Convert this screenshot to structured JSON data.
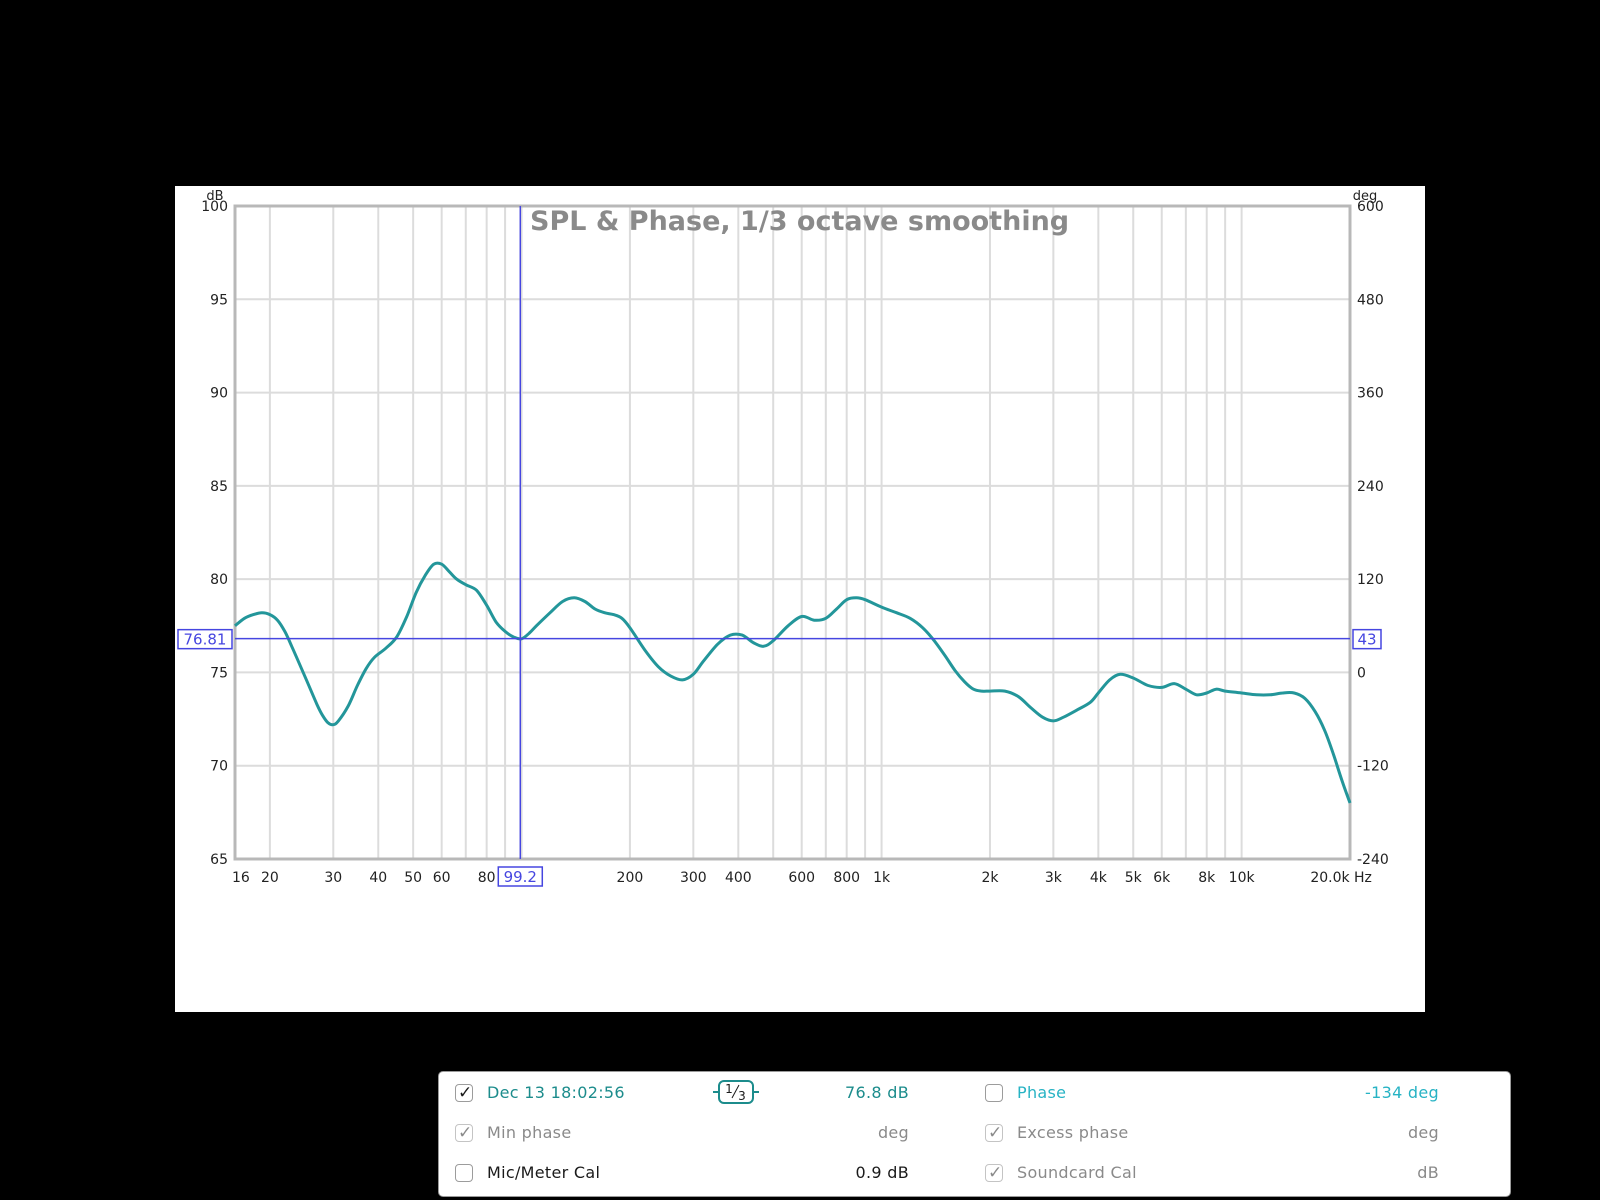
{
  "chart_data": {
    "type": "line",
    "title": "SPL & Phase, 1/3 octave smoothing",
    "x_scale": "log",
    "x_unit": "Hz",
    "xlim": [
      16,
      20000
    ],
    "left_axis_unit": "dB",
    "right_axis_unit": "deg",
    "ylim_left": [
      65,
      100
    ],
    "ylim_right": [
      -240,
      600
    ],
    "x_ticks": [
      {
        "value": 16,
        "label": "16"
      },
      {
        "value": 20,
        "label": "20"
      },
      {
        "value": 30,
        "label": "30"
      },
      {
        "value": 40,
        "label": "40"
      },
      {
        "value": 50,
        "label": "50"
      },
      {
        "value": 60,
        "label": "60"
      },
      {
        "value": 80,
        "label": "80"
      },
      {
        "value": 200,
        "label": "200"
      },
      {
        "value": 300,
        "label": "300"
      },
      {
        "value": 400,
        "label": "400"
      },
      {
        "value": 600,
        "label": "600"
      },
      {
        "value": 800,
        "label": "800"
      },
      {
        "value": 1000,
        "label": "1k"
      },
      {
        "value": 2000,
        "label": "2k"
      },
      {
        "value": 3000,
        "label": "3k"
      },
      {
        "value": 4000,
        "label": "4k"
      },
      {
        "value": 5000,
        "label": "5k"
      },
      {
        "value": 6000,
        "label": "6k"
      },
      {
        "value": 8000,
        "label": "8k"
      },
      {
        "value": 10000,
        "label": "10k"
      },
      {
        "value": 20000,
        "label": "20.0k"
      }
    ],
    "x_gridlines": [
      16,
      20,
      30,
      40,
      50,
      60,
      70,
      80,
      90,
      100,
      200,
      300,
      400,
      500,
      600,
      700,
      800,
      900,
      1000,
      2000,
      3000,
      4000,
      5000,
      6000,
      7000,
      8000,
      9000,
      10000,
      20000
    ],
    "x_end_label": "Hz",
    "y_left_ticks": [
      {
        "value": 100,
        "label": "100"
      },
      {
        "value": 95,
        "label": "95"
      },
      {
        "value": 90,
        "label": "90"
      },
      {
        "value": 85,
        "label": "85"
      },
      {
        "value": 80,
        "label": "80"
      },
      {
        "value": 75,
        "label": "75"
      },
      {
        "value": 70,
        "label": "70"
      },
      {
        "value": 65,
        "label": "65"
      }
    ],
    "y_right_ticks": [
      {
        "value": 600,
        "label": "600"
      },
      {
        "value": 480,
        "label": "480"
      },
      {
        "value": 360,
        "label": "360"
      },
      {
        "value": 240,
        "label": "240"
      },
      {
        "value": 120,
        "label": "120"
      },
      {
        "value": 0,
        "label": "0"
      },
      {
        "value": -120,
        "label": "-120"
      },
      {
        "value": -240,
        "label": "-240"
      }
    ],
    "cursor": {
      "x": 99.2,
      "x_label": "99.2",
      "y": 76.81,
      "y_label": "76.81",
      "right_label": "43"
    },
    "series": [
      {
        "name": "Dec 13 18:02:56",
        "color": "#23969a",
        "points": [
          [
            16,
            77.5
          ],
          [
            17,
            77.9
          ],
          [
            18,
            78.1
          ],
          [
            19,
            78.2
          ],
          [
            20,
            78.1
          ],
          [
            21,
            77.8
          ],
          [
            22,
            77.2
          ],
          [
            23,
            76.4
          ],
          [
            25,
            74.8
          ],
          [
            27,
            73.3
          ],
          [
            28,
            72.7
          ],
          [
            29,
            72.3
          ],
          [
            30,
            72.2
          ],
          [
            31,
            72.4
          ],
          [
            33,
            73.2
          ],
          [
            35,
            74.3
          ],
          [
            37,
            75.2
          ],
          [
            39,
            75.8
          ],
          [
            42,
            76.3
          ],
          [
            45,
            76.9
          ],
          [
            48,
            78.0
          ],
          [
            51,
            79.3
          ],
          [
            54,
            80.2
          ],
          [
            57,
            80.8
          ],
          [
            60,
            80.8
          ],
          [
            63,
            80.4
          ],
          [
            66,
            80.0
          ],
          [
            70,
            79.7
          ],
          [
            75,
            79.4
          ],
          [
            80,
            78.6
          ],
          [
            85,
            77.7
          ],
          [
            90,
            77.2
          ],
          [
            95,
            76.9
          ],
          [
            100,
            76.8
          ],
          [
            105,
            77.1
          ],
          [
            110,
            77.5
          ],
          [
            120,
            78.2
          ],
          [
            130,
            78.8
          ],
          [
            140,
            79.0
          ],
          [
            150,
            78.8
          ],
          [
            160,
            78.4
          ],
          [
            170,
            78.2
          ],
          [
            180,
            78.1
          ],
          [
            190,
            77.9
          ],
          [
            200,
            77.4
          ],
          [
            220,
            76.2
          ],
          [
            240,
            75.3
          ],
          [
            260,
            74.8
          ],
          [
            280,
            74.6
          ],
          [
            300,
            74.9
          ],
          [
            320,
            75.6
          ],
          [
            350,
            76.5
          ],
          [
            380,
            77.0
          ],
          [
            410,
            77.0
          ],
          [
            440,
            76.6
          ],
          [
            470,
            76.4
          ],
          [
            500,
            76.7
          ],
          [
            550,
            77.5
          ],
          [
            600,
            78.0
          ],
          [
            650,
            77.8
          ],
          [
            700,
            77.9
          ],
          [
            750,
            78.4
          ],
          [
            800,
            78.9
          ],
          [
            850,
            79.0
          ],
          [
            900,
            78.9
          ],
          [
            1000,
            78.5
          ],
          [
            1100,
            78.2
          ],
          [
            1200,
            77.9
          ],
          [
            1300,
            77.4
          ],
          [
            1400,
            76.7
          ],
          [
            1500,
            75.9
          ],
          [
            1600,
            75.1
          ],
          [
            1700,
            74.5
          ],
          [
            1800,
            74.1
          ],
          [
            1900,
            74.0
          ],
          [
            2000,
            74.0
          ],
          [
            2200,
            74.0
          ],
          [
            2400,
            73.7
          ],
          [
            2600,
            73.1
          ],
          [
            2800,
            72.6
          ],
          [
            3000,
            72.4
          ],
          [
            3200,
            72.6
          ],
          [
            3500,
            73.0
          ],
          [
            3800,
            73.4
          ],
          [
            4000,
            73.9
          ],
          [
            4300,
            74.6
          ],
          [
            4600,
            74.9
          ],
          [
            5000,
            74.7
          ],
          [
            5500,
            74.3
          ],
          [
            6000,
            74.2
          ],
          [
            6500,
            74.4
          ],
          [
            7000,
            74.1
          ],
          [
            7500,
            73.8
          ],
          [
            8000,
            73.9
          ],
          [
            8500,
            74.1
          ],
          [
            9000,
            74.0
          ],
          [
            10000,
            73.9
          ],
          [
            11000,
            73.8
          ],
          [
            12000,
            73.8
          ],
          [
            13000,
            73.9
          ],
          [
            14000,
            73.9
          ],
          [
            15000,
            73.6
          ],
          [
            16000,
            72.9
          ],
          [
            17000,
            71.9
          ],
          [
            18000,
            70.6
          ],
          [
            19000,
            69.2
          ],
          [
            20000,
            68.0
          ]
        ]
      }
    ]
  },
  "legend": {
    "rows": [
      {
        "left": {
          "checked": true,
          "label": "Dec 13 18:02:56",
          "value": "76.8 dB",
          "smoothing": {
            "num": "1",
            "den": "3"
          }
        },
        "right": {
          "checked": false,
          "label": "Phase",
          "value": "-134 deg"
        }
      },
      {
        "left": {
          "checked": true,
          "label": "Min phase",
          "value": "deg"
        },
        "right": {
          "checked": true,
          "label": "Excess phase",
          "value": "deg"
        }
      },
      {
        "left": {
          "checked": false,
          "label": "Mic/Meter Cal",
          "value": "0.9 dB"
        },
        "right": {
          "checked": true,
          "label": "Soundcard Cal",
          "value": "dB"
        }
      }
    ],
    "check_mark": "✓"
  },
  "colors": {
    "trace": "#23969a",
    "cursor": "#4646e0",
    "grid": "#dcdcdc",
    "frame": "#b8b8b8",
    "title": "#8a8a8a"
  }
}
